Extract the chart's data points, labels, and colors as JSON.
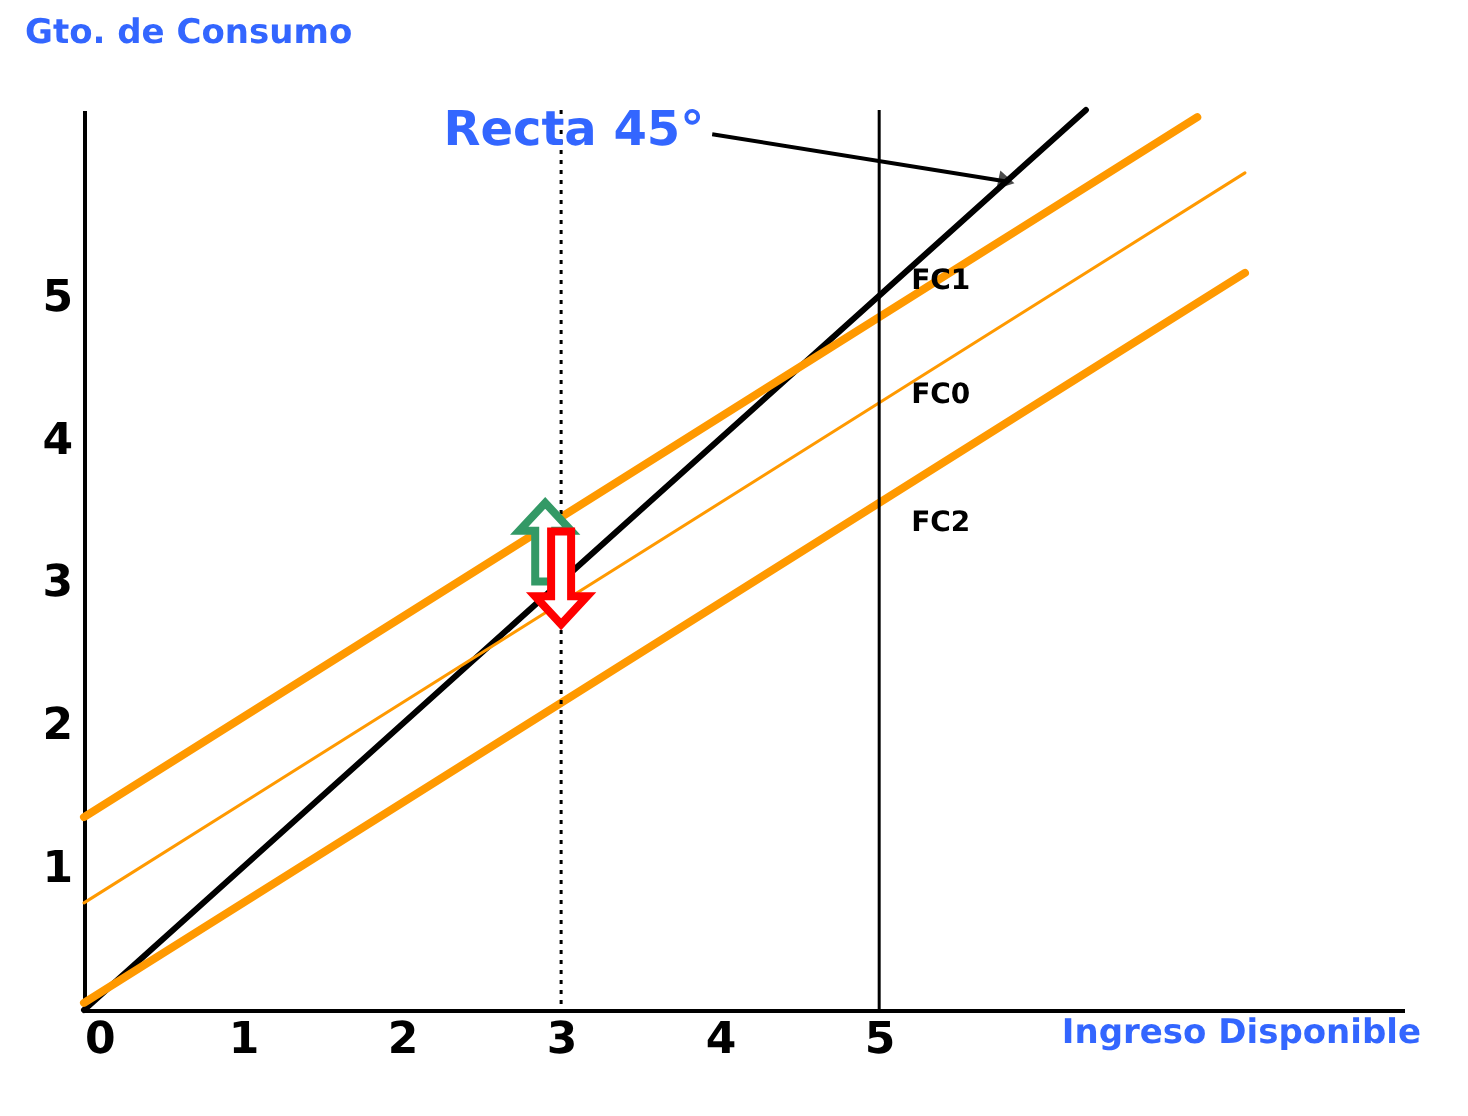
{
  "chart_data": {
    "type": "line",
    "xlabel": "Ingreso Disponible",
    "ylabel": "Gto. de Consumo",
    "xlim": [
      0,
      8.3
    ],
    "ylim": [
      0,
      6.3
    ],
    "xticks": [
      0,
      1,
      2,
      3,
      4,
      5
    ],
    "yticks": [
      1,
      2,
      3,
      4,
      5
    ],
    "series": [
      {
        "color": "#000000",
        "x": [
          0,
          6.3
        ],
        "values": [
          0,
          6.3
        ]
      },
      {
        "name": "FC1",
        "color": "#ff9900",
        "x": [
          0,
          7
        ],
        "values": [
          1.35,
          6.25
        ]
      },
      {
        "name": "FC0",
        "color": "#ff9900",
        "x": [
          0,
          7.3
        ],
        "values": [
          0.75,
          5.86
        ]
      },
      {
        "name": "FC2",
        "color": "#ff9900",
        "x": [
          0,
          7.3
        ],
        "values": [
          0.05,
          5.16
        ]
      }
    ],
    "annotations": [
      {
        "text": "Recta 45°",
        "x": 5.8,
        "y": 5.8
      }
    ],
    "ref_lines": [
      {
        "axis": "x",
        "value": 5,
        "color": "#000000"
      },
      {
        "axis": "x",
        "value": 3,
        "color": "#000000",
        "line_style": "dotted"
      }
    ],
    "grid": false,
    "marker": "none"
  }
}
